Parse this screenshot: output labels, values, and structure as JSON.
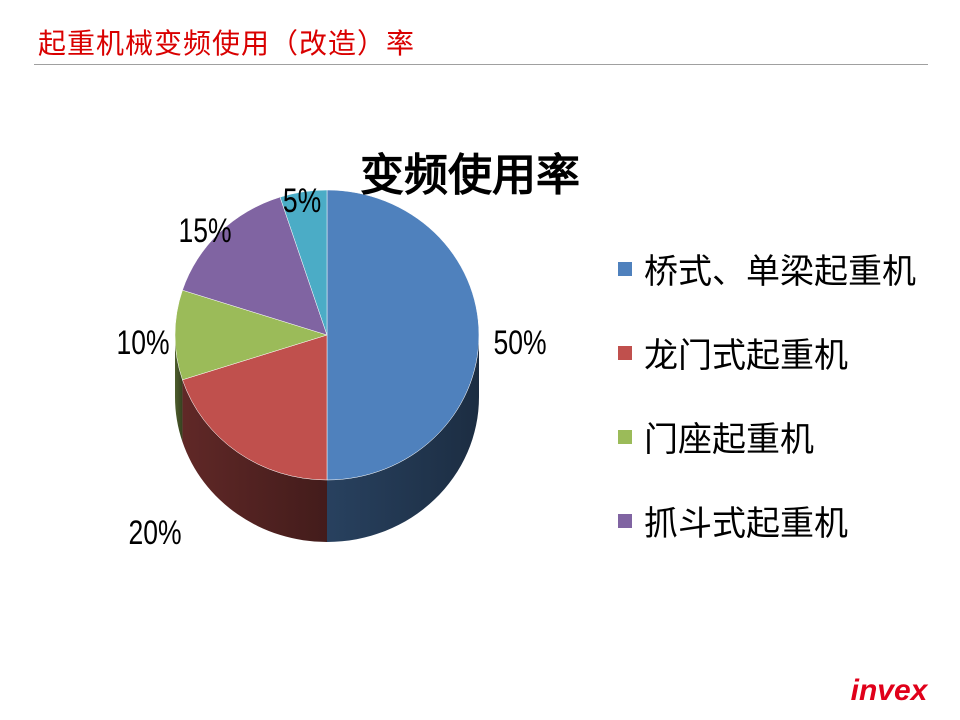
{
  "slide": {
    "title": "起重机械变频使用（改造）率"
  },
  "logo": {
    "text": "invex",
    "color": "#e0001a"
  },
  "chart_data": {
    "type": "pie",
    "title": "变频使用率",
    "legend_position": "right",
    "slices": [
      {
        "name": "桥式、单梁起重机",
        "value": 50,
        "label": "50%",
        "color": "#4f81bd",
        "show_legend": true
      },
      {
        "name": "龙门式起重机",
        "value": 20,
        "label": "20%",
        "color": "#c0504d",
        "show_legend": true
      },
      {
        "name": "门座起重机",
        "value": 10,
        "label": "10%",
        "color": "#9bbb59",
        "show_legend": true
      },
      {
        "name": "抓斗式起重机",
        "value": 15,
        "label": "15%",
        "color": "#8064a2",
        "show_legend": true
      },
      {
        "name": "",
        "value": 5,
        "label": "5%",
        "color": "#4bacc6",
        "show_legend": false
      }
    ]
  }
}
